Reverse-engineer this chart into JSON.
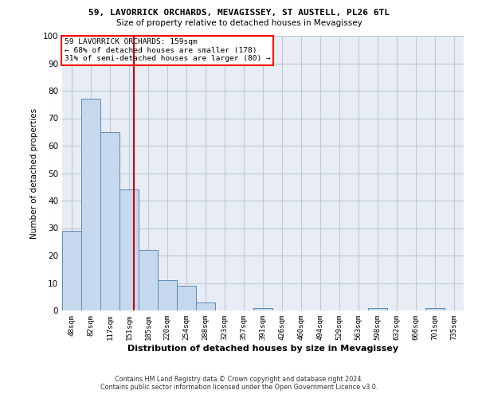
{
  "title1": "59, LAVORRICK ORCHARDS, MEVAGISSEY, ST AUSTELL, PL26 6TL",
  "title2": "Size of property relative to detached houses in Mevagissey",
  "xlabel": "Distribution of detached houses by size in Mevagissey",
  "ylabel": "Number of detached properties",
  "footer1": "Contains HM Land Registry data © Crown copyright and database right 2024.",
  "footer2": "Contains public sector information licensed under the Open Government Licence v3.0.",
  "annotation_line1": "59 LAVORRICK ORCHARDS: 159sqm",
  "annotation_line2": "← 68% of detached houses are smaller (178)",
  "annotation_line3": "31% of semi-detached houses are larger (80) →",
  "bar_color": "#c5d8ed",
  "bar_edge_color": "#5a8ab5",
  "vline_color": "#cc0000",
  "categories": [
    "48sqm",
    "82sqm",
    "117sqm",
    "151sqm",
    "185sqm",
    "220sqm",
    "254sqm",
    "288sqm",
    "323sqm",
    "357sqm",
    "391sqm",
    "426sqm",
    "460sqm",
    "494sqm",
    "529sqm",
    "563sqm",
    "598sqm",
    "632sqm",
    "666sqm",
    "701sqm",
    "735sqm"
  ],
  "values": [
    29,
    77,
    65,
    44,
    22,
    11,
    9,
    3,
    0,
    0,
    1,
    0,
    0,
    0,
    0,
    0,
    1,
    0,
    0,
    1,
    0
  ],
  "ylim": [
    0,
    100
  ],
  "yticks": [
    0,
    10,
    20,
    30,
    40,
    50,
    60,
    70,
    80,
    90,
    100
  ],
  "grid_color": "#c0c8d8",
  "bg_color": "#e8edf5",
  "vline_x_index": 3.24
}
